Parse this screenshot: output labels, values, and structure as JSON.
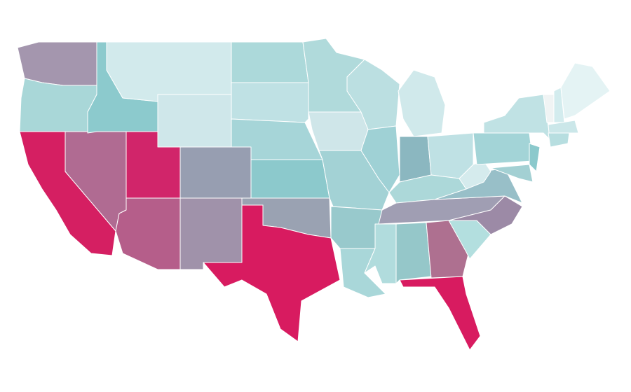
{
  "map": {
    "regions": [
      {
        "color": "#a496ae"
      },
      {
        "color": "#a9d7d8"
      },
      {
        "color": "#d51f62"
      },
      {
        "color": "#b06b92"
      },
      {
        "color": "#8ccacd"
      },
      {
        "color": "#d2eaec"
      },
      {
        "color": "#cfe7ea"
      },
      {
        "color": "#d1256a"
      },
      {
        "color": "#979eb1"
      },
      {
        "color": "#b55e8a"
      },
      {
        "color": "#a092aa"
      },
      {
        "color": "#acd9da"
      },
      {
        "color": "#bfe1e4"
      },
      {
        "color": "#a6d5d8"
      },
      {
        "color": "#8cc9cc"
      },
      {
        "color": "#9aa2b2"
      },
      {
        "color": "#d81b60"
      },
      {
        "color": "#b0dadb"
      },
      {
        "color": "#cfe6e9"
      },
      {
        "color": "#a3d2d5"
      },
      {
        "color": "#98c9cc"
      },
      {
        "color": "#a9d7d9"
      },
      {
        "color": "#bbdfe1"
      },
      {
        "color": "#9fd1d5"
      },
      {
        "color": "#d0e9eb"
      },
      {
        "color": "#8bb7c0"
      },
      {
        "color": "#bfe1e4"
      },
      {
        "color": "#acd8d9"
      },
      {
        "color": "#a09eb3"
      },
      {
        "color": "#b1dcdd"
      },
      {
        "color": "#95c7c9"
      },
      {
        "color": "#ae7090"
      },
      {
        "color": "#d81b60"
      },
      {
        "color": "#b3dfdf"
      },
      {
        "color": "#9c8aa6"
      },
      {
        "color": "#98bfc8"
      },
      {
        "color": "#d5ebed"
      },
      {
        "color": "#a3d4d7"
      },
      {
        "color": "#c0e2e4"
      },
      {
        "color": "#8bc9cc"
      },
      {
        "color": "#a3d0d3"
      },
      {
        "color": "#f0f4f4"
      },
      {
        "color": "#d3ecee"
      },
      {
        "color": "#e4f3f4"
      },
      {
        "color": "#cbe7e9"
      },
      {
        "color": "#b7dee0"
      }
    ]
  }
}
